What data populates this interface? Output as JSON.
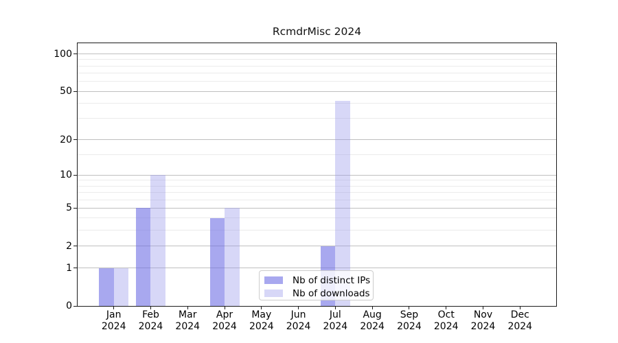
{
  "chart_data": {
    "type": "bar",
    "title": "RcmdrMisc 2024",
    "xlabel": "",
    "ylabel": "",
    "categories": [
      "Jan",
      "Feb",
      "Mar",
      "Apr",
      "May",
      "Jun",
      "Jul",
      "Aug",
      "Sep",
      "Oct",
      "Nov",
      "Dec"
    ],
    "x_tick_second_line": "2024",
    "series": [
      {
        "name": "Nb of distinct IPs",
        "color": "#6969e4",
        "alpha": 0.58,
        "values": [
          1,
          5,
          0,
          4,
          0,
          0,
          2,
          0,
          0,
          0,
          0,
          0
        ]
      },
      {
        "name": "Nb of downloads",
        "color": "#9696eb",
        "alpha": 0.38,
        "values": [
          1,
          10,
          0,
          5,
          0,
          0,
          42,
          0,
          0,
          0,
          0,
          0
        ]
      }
    ],
    "y_axis": {
      "scale": "log1p",
      "major_ticks": [
        0,
        1,
        2,
        5,
        10,
        20,
        50,
        100
      ],
      "minor_ticks": [
        3,
        4,
        6,
        7,
        8,
        9,
        15,
        30,
        40,
        60,
        70,
        80,
        90
      ],
      "range_top_value": 122,
      "grid": true
    },
    "legend": {
      "position": "inside-bottom-center",
      "background_alpha": 0.8,
      "border_color": "#cccccc"
    },
    "colors": {
      "spine": "#1a1a1a",
      "grid_major": "#bfbfbf",
      "grid_minor": "#ebebeb",
      "background": "#ffffff"
    }
  }
}
